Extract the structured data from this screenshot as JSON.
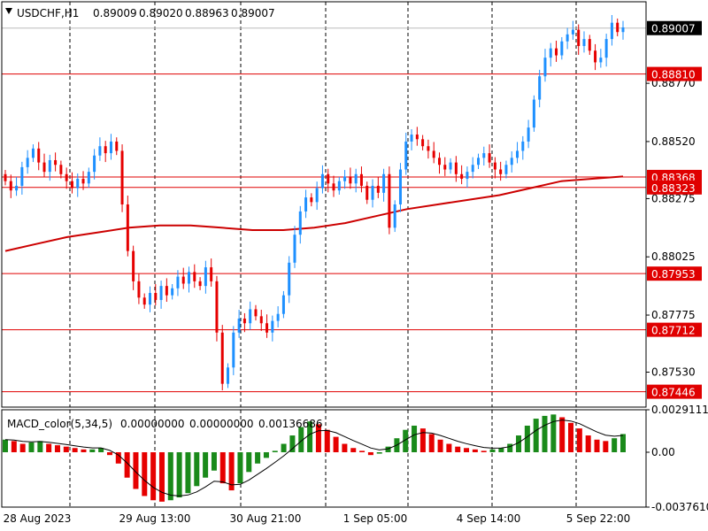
{
  "symbol_header": {
    "symbol": "USDCHF,H1",
    "open": "0.89009",
    "high": "0.89020",
    "low": "0.88963",
    "close": "0.89007",
    "dropdown_icon": "triangle-down-icon"
  },
  "indicator_header": {
    "name": "MACD_color(5,34,5)",
    "values": [
      "0.00000000",
      "0.00000000",
      "0.00136686"
    ]
  },
  "colors": {
    "background": "#ffffff",
    "bull_candle": "#1e90ff",
    "bear_candle": "#e60000",
    "moving_average": "#cc0000",
    "level_line": "#e00000",
    "grid": "#000000",
    "macd_up": "#e60000",
    "macd_down": "#1a8a1a",
    "signal_line": "#000000",
    "current_price_tag": "#000000"
  },
  "chart_data": [
    {
      "type": "candlestick",
      "title": "USDCHF,H1",
      "xlabel": "",
      "ylabel": "",
      "ylim": [
        0.8738,
        0.8912
      ],
      "y_ticks": [
        "0.88770",
        "0.88520",
        "0.88275",
        "0.88025",
        "0.87775",
        "0.87530"
      ],
      "x_ticks": [
        "28 Aug 2023",
        "29 Aug 13:00",
        "30 Aug 21:00",
        "1 Sep 05:00",
        "4 Sep 14:00",
        "5 Sep 22:00"
      ],
      "grid": true,
      "current_price": "0.89007",
      "horizontal_levels": [
        "0.88810",
        "0.88368",
        "0.88323",
        "0.87953",
        "0.87712",
        "0.87446"
      ],
      "candles_close": [
        0.8835,
        0.8831,
        0.8833,
        0.8841,
        0.8845,
        0.8849,
        0.8843,
        0.8839,
        0.8844,
        0.8842,
        0.8838,
        0.8835,
        0.8832,
        0.8836,
        0.8834,
        0.8839,
        0.8846,
        0.885,
        0.8847,
        0.8852,
        0.8848,
        0.8825,
        0.8805,
        0.8792,
        0.8785,
        0.8782,
        0.8787,
        0.8784,
        0.879,
        0.8786,
        0.8789,
        0.8794,
        0.8791,
        0.8796,
        0.8792,
        0.879,
        0.8798,
        0.8792,
        0.877,
        0.8748,
        0.8755,
        0.877,
        0.8776,
        0.8774,
        0.878,
        0.8777,
        0.8774,
        0.877,
        0.8775,
        0.8778,
        0.8786,
        0.88,
        0.8812,
        0.8822,
        0.8828,
        0.8826,
        0.8832,
        0.8838,
        0.8834,
        0.8831,
        0.8835,
        0.8837,
        0.8834,
        0.8838,
        0.8833,
        0.8827,
        0.8833,
        0.883,
        0.8838,
        0.8815,
        0.8825,
        0.884,
        0.8852,
        0.8855,
        0.8853,
        0.885,
        0.8848,
        0.8845,
        0.8842,
        0.884,
        0.8843,
        0.8838,
        0.8836,
        0.8839,
        0.8842,
        0.8845,
        0.8847,
        0.8843,
        0.884,
        0.8838,
        0.8842,
        0.8845,
        0.8848,
        0.8852,
        0.8858,
        0.887,
        0.888,
        0.8888,
        0.8892,
        0.8889,
        0.8895,
        0.8898,
        0.89,
        0.8893,
        0.8896,
        0.8891,
        0.8886,
        0.8888,
        0.8896,
        0.8903,
        0.8899,
        0.8901
      ],
      "moving_average": [
        0.8805,
        0.8808,
        0.8811,
        0.8813,
        0.8815,
        0.8816,
        0.8816,
        0.8815,
        0.8814,
        0.8814,
        0.8815,
        0.8817,
        0.882,
        0.8823,
        0.8825,
        0.8827,
        0.8829,
        0.8832,
        0.8835,
        0.8836,
        0.8837
      ],
      "macd": {
        "ylim": [
          -0.003761,
          0.0029111
        ],
        "y_ticks": [
          "0.0029111",
          "0.00",
          "-0.0037610"
        ],
        "histogram": [
          0.0009,
          0.0008,
          0.0006,
          0.0007,
          0.0008,
          0.0006,
          0.0005,
          0.0004,
          0.0003,
          0.0002,
          0.0002,
          0.0003,
          -0.0002,
          -0.0008,
          -0.0018,
          -0.0026,
          -0.0031,
          -0.0034,
          -0.0035,
          -0.0034,
          -0.0032,
          -0.0029,
          -0.0024,
          -0.0018,
          -0.0013,
          -0.0022,
          -0.0027,
          -0.0022,
          -0.0014,
          -0.0008,
          -0.0004,
          0.0001,
          0.0006,
          0.0012,
          0.0018,
          0.0022,
          0.002,
          0.0016,
          0.0011,
          0.0006,
          0.0003,
          0.0001,
          -0.0002,
          -0.0001,
          0.0004,
          0.001,
          0.0016,
          0.0019,
          0.0017,
          0.0013,
          0.0009,
          0.0006,
          0.0004,
          0.0003,
          0.0002,
          0.0001,
          0.0002,
          0.0003,
          0.0006,
          0.0012,
          0.0019,
          0.0024,
          0.0026,
          0.0027,
          0.0025,
          0.0021,
          0.0017,
          0.0012,
          0.0009,
          0.0008,
          0.001,
          0.0013
        ]
      }
    }
  ]
}
